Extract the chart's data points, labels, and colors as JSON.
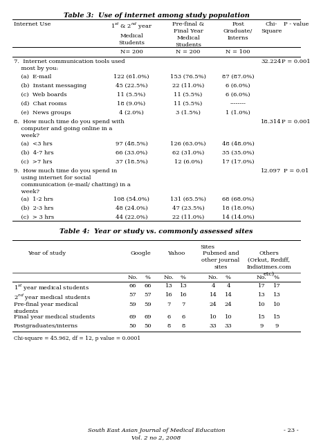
{
  "table3_title": "Table 3:  Use of internet among study population",
  "table4_title": "Table 4:  Year or study vs. commonly assessed sites",
  "table4_footnote": "Chi-square = 45.962, df = 12, p value = 0.0001",
  "footer_left": "South East Asian Journal of Medical Education\nVol. 2 no 2, 2008",
  "footer_right": "- 23 -",
  "bg_color": "#ffffff",
  "text_color": "#000000"
}
